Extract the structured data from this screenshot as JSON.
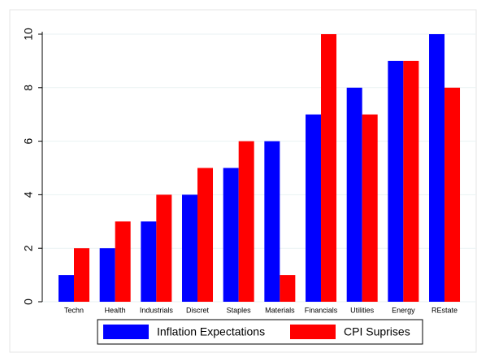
{
  "chart_data": {
    "type": "bar",
    "categories": [
      "Techn",
      "Health",
      "Industrials",
      "Discret",
      "Staples",
      "Materials",
      "Financials",
      "Utilities",
      "Energy",
      "REstate"
    ],
    "series": [
      {
        "name": "Inflation Expectations",
        "color": "#0000ff",
        "values": [
          1,
          2,
          3,
          4,
          5,
          6,
          7,
          8,
          9,
          10
        ]
      },
      {
        "name": "CPI Suprises",
        "color": "#ff0000",
        "values": [
          2,
          3,
          4,
          5,
          6,
          1,
          10,
          7,
          9,
          8
        ]
      }
    ],
    "ylim": [
      0,
      10
    ],
    "yticks": [
      0,
      2,
      4,
      6,
      8,
      10
    ],
    "grid": true,
    "legend": "bottom"
  }
}
